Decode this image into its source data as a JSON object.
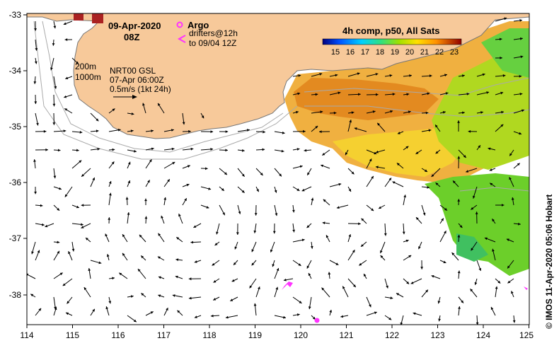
{
  "map": {
    "date_label": "09-Apr-2020",
    "time_label": "08Z",
    "argo_label": "Argo",
    "drifters_label": "drifters@12h",
    "drifters_to": "to 09/04 12Z",
    "isobath_200": "200m",
    "isobath_1000": "1000m",
    "model_label": "NRT00 GSL",
    "model_time": "07-Apr 06:00Z",
    "scale_label": "0.5m/s (1kt 24h)",
    "credit": "© IMOS 11-Apr-2020 05:06 Hobart"
  },
  "colorbar": {
    "title": "4h comp, p50, All Sats",
    "ticks": [
      "15",
      "16",
      "17",
      "18",
      "19",
      "20",
      "21",
      "22",
      "23"
    ]
  },
  "axes": {
    "lon_ticks": [
      "114",
      "115",
      "116",
      "117",
      "118",
      "119",
      "120",
      "121",
      "122",
      "123",
      "124",
      "125"
    ],
    "lat_ticks": [
      "-33",
      "-34",
      "-35",
      "-36",
      "-37",
      "-38"
    ]
  },
  "colors": {
    "land": "#f7c99a",
    "coast": "#777777",
    "isobath": "#aaaaaa",
    "argo": "#ff33ff",
    "arrow": "#000000"
  }
}
